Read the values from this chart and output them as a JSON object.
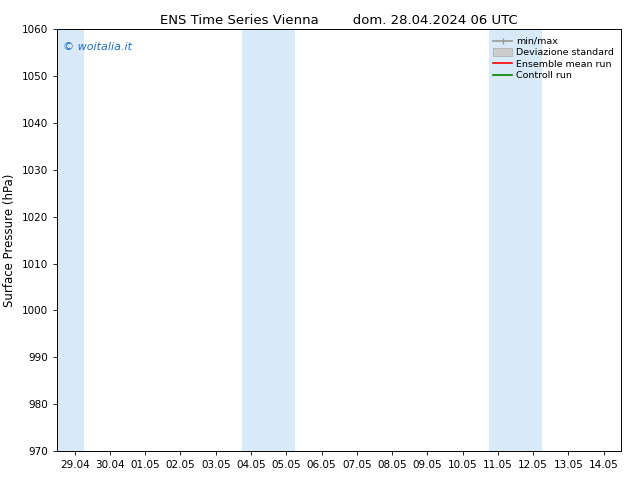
{
  "title_left": "ENS Time Series Vienna",
  "title_right": "dom. 28.04.2024 06 UTC",
  "ylabel": "Surface Pressure (hPa)",
  "ylim": [
    970,
    1060
  ],
  "yticks": [
    970,
    980,
    990,
    1000,
    1010,
    1020,
    1030,
    1040,
    1050,
    1060
  ],
  "x_labels": [
    "29.04",
    "30.04",
    "01.05",
    "02.05",
    "03.05",
    "04.05",
    "05.05",
    "06.05",
    "07.05",
    "08.05",
    "09.05",
    "10.05",
    "11.05",
    "12.05",
    "13.05",
    "14.05"
  ],
  "x_positions": [
    0,
    1,
    2,
    3,
    4,
    5,
    6,
    7,
    8,
    9,
    10,
    11,
    12,
    13,
    14,
    15
  ],
  "shaded_bands": [
    {
      "xmin": -0.5,
      "xmax": 0.25
    },
    {
      "xmin": 4.75,
      "xmax": 6.25
    },
    {
      "xmin": 11.75,
      "xmax": 13.25
    }
  ],
  "band_color": "#d8eaf8",
  "background_color": "#ffffff",
  "watermark_text": "© woitalia.it",
  "watermark_color": "#1a6fc4",
  "tick_fontsize": 7.5,
  "label_fontsize": 8.5,
  "title_fontsize": 9.5
}
